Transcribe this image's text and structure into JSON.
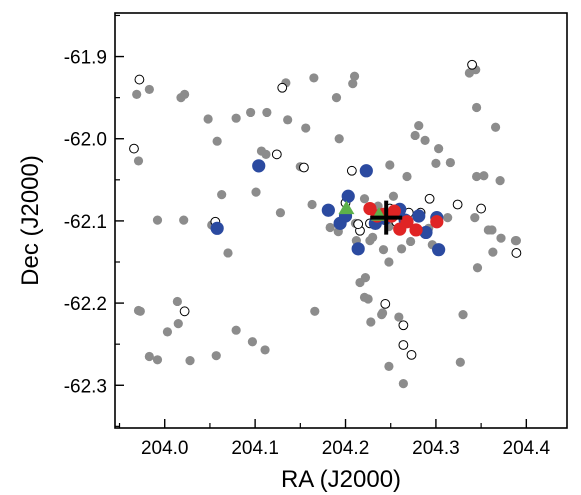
{
  "chart_data": {
    "type": "scatter",
    "title": "",
    "xlabel": "RA (J2000)",
    "ylabel": "Dec (J2000)",
    "xlim": [
      203.945,
      204.445
    ],
    "ylim": [
      -62.352,
      -61.847
    ],
    "x_ticks": [
      {
        "value": 204.0,
        "label": "204.0"
      },
      {
        "value": 204.1,
        "label": "204.1"
      },
      {
        "value": 204.2,
        "label": "204.2"
      },
      {
        "value": 204.3,
        "label": "204.3"
      },
      {
        "value": 204.4,
        "label": "204.4"
      }
    ],
    "y_ticks": [
      {
        "value": -61.9,
        "label": "-61.9"
      },
      {
        "value": -62.0,
        "label": "-62.0"
      },
      {
        "value": -62.1,
        "label": "-62.1"
      },
      {
        "value": -62.2,
        "label": "-62.2"
      },
      {
        "value": -62.3,
        "label": "-62.3"
      }
    ],
    "grid": false,
    "colors": {
      "gray": "#8c8c8c",
      "open": "#ffffff",
      "blue": "#2b4aa0",
      "red": "#e02424",
      "green": "#5db14a",
      "marker": "#000000"
    },
    "series": [
      {
        "marker": "filled-circle",
        "color": "#8c8c8c",
        "x": [
          203.969,
          203.983,
          203.971,
          203.992,
          204.018,
          204.022,
          204.048,
          204.058,
          204.063,
          204.079,
          204.095,
          204.107,
          204.112,
          204.128,
          204.134,
          204.15,
          204.165,
          204.183,
          204.193,
          204.208,
          204.21,
          204.222,
          204.225,
          204.24,
          204.248,
          204.248,
          204.268,
          204.281,
          204.277,
          204.288,
          204.303,
          204.3,
          204.313,
          204.337,
          204.344,
          204.345,
          204.353,
          204.366,
          204.371,
          204.358,
          204.389,
          204.345,
          204.362,
          204.316,
          204.33,
          204.327,
          204.264,
          204.259,
          204.241,
          204.228,
          204.221,
          204.242,
          204.212,
          204.192,
          204.19,
          204.156,
          204.136,
          204.113,
          204.101,
          204.07,
          204.052,
          204.021,
          204.015,
          204.003,
          203.992,
          203.983,
          203.971,
          203.973,
          204.014,
          204.028,
          204.057,
          204.079,
          204.097,
          204.111,
          204.166,
          204.216,
          204.249,
          204.262,
          204.272,
          204.296,
          204.346,
          204.363,
          204.372,
          204.388,
          204.221,
          204.236,
          204.253,
          204.163,
          204.211,
          204.227,
          204.262,
          204.23,
          204.248,
          204.26,
          204.292,
          204.343
        ],
        "y": [
          -61.946,
          -61.94,
          -62.027,
          -62.099,
          -61.95,
          -61.946,
          -61.976,
          -62.003,
          -62.068,
          -61.975,
          -61.968,
          -62.015,
          -62.019,
          -62.09,
          -61.932,
          -62.034,
          -61.926,
          -62.108,
          -62.0,
          -61.933,
          -61.924,
          -62.169,
          -62.195,
          -62.214,
          -62.277,
          -62.15,
          -62.046,
          -61.984,
          -61.996,
          -62.002,
          -62.012,
          -62.03,
          -62.096,
          -61.92,
          -61.916,
          -61.962,
          -62.045,
          -61.986,
          -62.051,
          -62.111,
          -62.124,
          -62.046,
          -62.111,
          -62.029,
          -62.214,
          -62.272,
          -62.298,
          -62.217,
          -62.212,
          -62.223,
          -62.193,
          -62.135,
          -62.124,
          -62.113,
          -61.95,
          -61.987,
          -61.977,
          -61.968,
          -62.065,
          -62.139,
          -62.105,
          -62.099,
          -62.225,
          -62.235,
          -62.269,
          -62.265,
          -62.209,
          -62.21,
          -62.198,
          -62.27,
          -62.264,
          -62.233,
          -62.247,
          -62.257,
          -62.21,
          -62.175,
          -62.032,
          -62.134,
          -62.125,
          -62.129,
          -62.157,
          -62.138,
          -62.121,
          -62.124,
          -62.073,
          -62.082,
          -62.07,
          -62.08,
          -62.103,
          -62.124,
          -62.089,
          -62.12,
          -62.107,
          -62.092,
          -62.109,
          -62.096
        ]
      },
      {
        "marker": "open-circle",
        "color": "#ffffff",
        "x": [
          203.972,
          203.966,
          204.022,
          204.056,
          204.124,
          204.13,
          204.154,
          204.207,
          204.244,
          204.264,
          204.264,
          204.273,
          204.293,
          204.324,
          204.34,
          204.35,
          204.389,
          204.2,
          204.216,
          204.227,
          204.239,
          204.256,
          204.27,
          204.283,
          204.214,
          204.249
        ],
        "y": [
          -61.928,
          -62.012,
          -62.21,
          -62.101,
          -62.019,
          -61.938,
          -62.035,
          -62.039,
          -62.201,
          -62.227,
          -62.251,
          -62.263,
          -62.073,
          -62.08,
          -61.91,
          -62.085,
          -62.139,
          -62.078,
          -62.112,
          -62.103,
          -62.095,
          -62.101,
          -62.09,
          -62.09,
          -62.104,
          -62.085
        ]
      },
      {
        "marker": "filled-circle",
        "color": "#2b4aa0",
        "x": [
          204.104,
          204.058,
          204.181,
          204.203,
          204.223,
          204.214,
          204.233,
          204.244,
          204.26,
          204.281,
          204.289,
          204.301,
          204.303,
          204.266,
          204.194,
          204.2
        ],
        "y": [
          -62.033,
          -62.109,
          -62.087,
          -62.07,
          -62.039,
          -62.134,
          -62.103,
          -62.097,
          -62.086,
          -62.094,
          -62.114,
          -62.096,
          -62.135,
          -62.099,
          -62.103,
          -62.094
        ]
      },
      {
        "marker": "filled-circle",
        "color": "#e02424",
        "x": [
          204.227,
          204.235,
          204.251,
          204.26,
          204.268,
          204.278,
          204.301,
          204.254,
          204.242
        ],
        "y": [
          -62.085,
          -62.094,
          -62.094,
          -62.11,
          -62.101,
          -62.111,
          -62.101,
          -62.088,
          -62.092
        ]
      },
      {
        "marker": "triangle",
        "color": "#5db14a",
        "x": [
          204.201,
          204.237
        ],
        "y": [
          -62.085,
          -62.093
        ]
      },
      {
        "marker": "cross",
        "color": "#000000",
        "x": [
          204.245
        ],
        "y": [
          -62.096
        ]
      }
    ]
  }
}
